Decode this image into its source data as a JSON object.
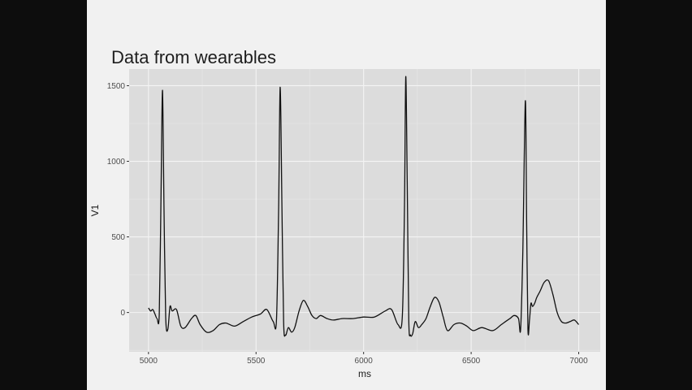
{
  "slide": {
    "title": "Data from wearables"
  },
  "colors": {
    "page_background": "#0d0d0d",
    "slide_background": "#f1f1f1",
    "panel_background": "#dcdcdc",
    "grid_major": "#f4f4f4",
    "grid_minor": "#e8e8e8",
    "line": "#111111"
  },
  "chart_data": {
    "type": "line",
    "title": "",
    "xlabel": "ms",
    "ylabel": "V1",
    "xlim": [
      4910,
      7100
    ],
    "ylim": [
      -260,
      1610
    ],
    "x_ticks": [
      5000,
      5500,
      6000,
      6500,
      7000
    ],
    "y_ticks": [
      0,
      500,
      1000,
      1500
    ],
    "x_tick_labels": [
      "5000",
      "5500",
      "6000",
      "6500",
      "7000"
    ],
    "y_tick_labels": [
      "0",
      "500",
      "1000",
      "1500"
    ],
    "grid": true,
    "legend": "none",
    "series": [
      {
        "x": [
          5000,
          5010,
          5020,
          5030,
          5040,
          5050,
          5058,
          5065,
          5072,
          5080,
          5090,
          5100,
          5110,
          5130,
          5150,
          5170,
          5200,
          5220,
          5240,
          5270,
          5300,
          5330,
          5360,
          5400,
          5440,
          5480,
          5520,
          5550,
          5580,
          5595,
          5605,
          5612,
          5620,
          5628,
          5637,
          5650,
          5665,
          5680,
          5700,
          5720,
          5740,
          5760,
          5780,
          5800,
          5830,
          5860,
          5900,
          5950,
          6000,
          6050,
          6100,
          6130,
          6160,
          6180,
          6190,
          6196,
          6203,
          6210,
          6218,
          6228,
          6240,
          6255,
          6270,
          6290,
          6310,
          6330,
          6350,
          6370,
          6390,
          6420,
          6450,
          6480,
          6510,
          6550,
          6600,
          6640,
          6680,
          6700,
          6720,
          6730,
          6740,
          6752,
          6758,
          6764,
          6771,
          6778,
          6785,
          6795,
          6805,
          6820,
          6840,
          6860,
          6880,
          6900,
          6920,
          6940,
          6960,
          6980,
          7000
        ],
        "y": [
          30,
          10,
          20,
          -10,
          -40,
          -10,
          750,
          1470,
          700,
          -30,
          -110,
          40,
          10,
          20,
          -90,
          -100,
          -40,
          -20,
          -80,
          -130,
          -120,
          -80,
          -70,
          -90,
          -60,
          -30,
          -10,
          20,
          -60,
          -50,
          700,
          1490,
          750,
          -60,
          -150,
          -100,
          -130,
          -100,
          10,
          80,
          40,
          -20,
          -40,
          -20,
          -40,
          -50,
          -40,
          -40,
          -30,
          -30,
          10,
          20,
          -80,
          -30,
          700,
          1560,
          850,
          -50,
          -150,
          -140,
          -60,
          -100,
          -80,
          -40,
          40,
          100,
          70,
          -30,
          -120,
          -80,
          -70,
          -90,
          -120,
          -100,
          -120,
          -80,
          -40,
          -20,
          -40,
          -110,
          400,
          1400,
          600,
          -110,
          -50,
          60,
          40,
          60,
          100,
          140,
          200,
          210,
          120,
          0,
          -60,
          -70,
          -60,
          -50,
          -80
        ],
        "y_plot": [
          30,
          10,
          20,
          -10,
          -40,
          -10,
          750,
          1470,
          700,
          -30,
          -110,
          40,
          10,
          20,
          -90,
          -100,
          -40,
          -20,
          -80,
          -130,
          -120,
          -80,
          -70,
          -90,
          -60,
          -30,
          -10,
          20,
          -60,
          -50,
          700,
          1490,
          750,
          -60,
          -150,
          -100,
          -130,
          -100,
          10,
          80,
          40,
          -20,
          -40,
          -20,
          -40,
          -50,
          -40,
          -40,
          -30,
          -30,
          10,
          20,
          -80,
          -30,
          700,
          1560,
          850,
          -50,
          -150,
          -140,
          -60,
          -100,
          -80,
          -40,
          40,
          100,
          70,
          -30,
          -120,
          -80,
          -70,
          -90,
          -120,
          -100,
          -120,
          -80,
          -40,
          -20,
          -40,
          -110,
          400,
          1400,
          600,
          -110,
          -50,
          60,
          40,
          60,
          100,
          140,
          200,
          210,
          120,
          0,
          -60,
          -70,
          -60,
          -50,
          -80
        ]
      }
    ]
  }
}
